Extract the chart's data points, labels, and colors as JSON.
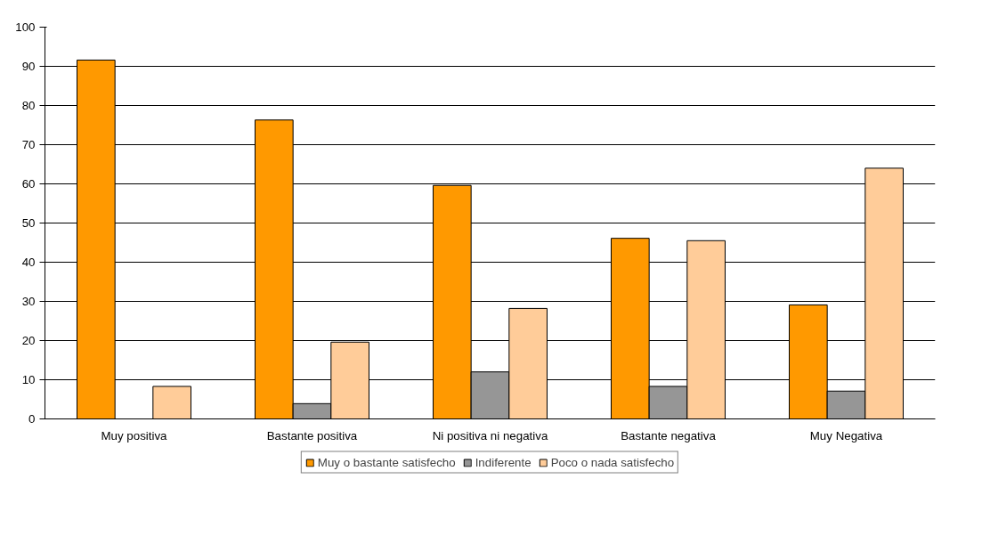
{
  "chart_data": {
    "type": "bar",
    "categories": [
      "Muy positiva",
      "Bastante positiva",
      "Ni positiva ni negativa",
      "Bastante negativa",
      "Muy Negativa"
    ],
    "series": [
      {
        "name": "Muy o bastante satisfecho",
        "color": "#ff9900",
        "values": [
          91.6,
          76.3,
          59.6,
          46.1,
          29.1
        ]
      },
      {
        "name": "Indiferente",
        "color": "#969696",
        "values": [
          null,
          3.9,
          12.0,
          8.3,
          7.1
        ]
      },
      {
        "name": "Poco o nada satisfecho",
        "color": "#ffcc99",
        "values": [
          8.3,
          19.6,
          28.2,
          45.5,
          64.0
        ]
      }
    ],
    "ylim": [
      0,
      100
    ],
    "yticks": [
      0,
      10,
      20,
      30,
      40,
      50,
      60,
      70,
      80,
      90,
      100
    ],
    "grid": "y",
    "legend": "bottom"
  }
}
